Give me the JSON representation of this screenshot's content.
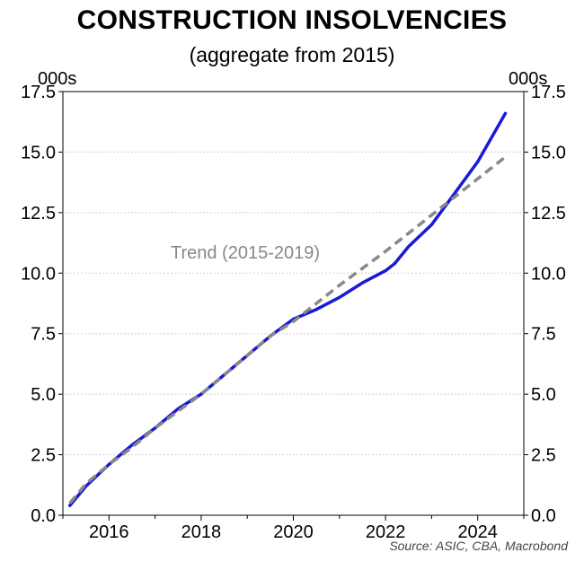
{
  "chart_data": {
    "type": "line",
    "title": "CONSTRUCTION INSOLVENCIES",
    "subtitle": "(aggregate from 2015)",
    "ylabel_left": "000s",
    "ylabel_right": "000s",
    "source": "Source: ASIC, CBA, Macrobond",
    "xlim": [
      2015.0,
      2025.0
    ],
    "ylim": [
      0,
      17.5
    ],
    "x_ticks": [
      2016,
      2018,
      2020,
      2022,
      2024
    ],
    "y_ticks": [
      0.0,
      2.5,
      5.0,
      7.5,
      10.0,
      12.5,
      15.0,
      17.5
    ],
    "y_tick_labels": [
      "0.0",
      "2.5",
      "5.0",
      "7.5",
      "10.0",
      "12.5",
      "15.0",
      "17.5"
    ],
    "grid": true,
    "annotation": "Trend (2015-2019)",
    "series": [
      {
        "style": "solid",
        "color": "#1a1ad6",
        "x": [
          2015.15,
          2015.5,
          2016.0,
          2016.5,
          2017.0,
          2017.5,
          2018.0,
          2018.5,
          2019.0,
          2019.5,
          2020.0,
          2020.25,
          2020.5,
          2021.0,
          2021.5,
          2022.0,
          2022.2,
          2022.5,
          2023.0,
          2023.5,
          2024.0,
          2024.3,
          2024.6
        ],
        "y": [
          0.4,
          1.2,
          2.1,
          2.9,
          3.6,
          4.4,
          5.0,
          5.8,
          6.6,
          7.4,
          8.1,
          8.3,
          8.5,
          9.0,
          9.6,
          10.1,
          10.4,
          11.1,
          12.0,
          13.3,
          14.6,
          15.6,
          16.6
        ]
      },
      {
        "style": "dashed",
        "color": "#888888",
        "x": [
          2015.15,
          2015.5,
          2016.0,
          2016.5,
          2017.0,
          2017.5,
          2018.0,
          2018.5,
          2019.0,
          2019.5,
          2020.0,
          2021.0,
          2022.0,
          2023.0,
          2024.0,
          2024.6
        ],
        "y": [
          0.5,
          1.3,
          2.1,
          2.8,
          3.6,
          4.3,
          5.0,
          5.8,
          6.6,
          7.4,
          8.0,
          9.5,
          10.9,
          12.4,
          13.9,
          14.8
        ]
      }
    ]
  }
}
